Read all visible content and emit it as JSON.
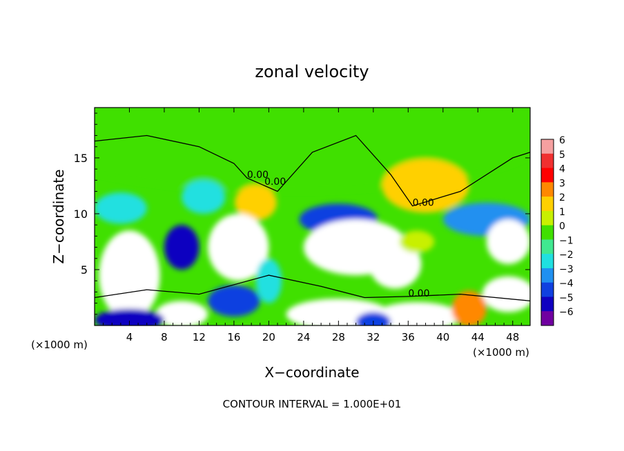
{
  "chart_data": {
    "type": "heatmap",
    "title": "zonal velocity",
    "xlabel": "X−coordinate",
    "ylabel": "Z−coordinate",
    "x_units_left": "(×1000 m)",
    "x_units_right": "(×1000 m)",
    "xlim": [
      0,
      50
    ],
    "ylim": [
      0,
      19.5
    ],
    "x_ticks": [
      4,
      8,
      12,
      16,
      20,
      24,
      28,
      32,
      36,
      40,
      44,
      48
    ],
    "y_ticks": [
      5,
      10,
      15
    ],
    "footer": "CONTOUR INTERVAL = 1.000E+01",
    "colorbar": {
      "levels": [
        6,
        5,
        4,
        3,
        2,
        1,
        0,
        -1,
        -2,
        -3,
        -4,
        -5,
        -6
      ],
      "tick_labels": [
        "6",
        "5",
        "4",
        "3",
        "2",
        "1",
        "0",
        "−1",
        "−2",
        "−3",
        "−4",
        "−5",
        "−6"
      ],
      "colors": [
        "#f5a0a0",
        "#f03030",
        "#ff0000",
        "#ff8800",
        "#ffd000",
        "#c8f000",
        "#40e000",
        "#40e890",
        "#20e0e0",
        "#2090f0",
        "#1040e0",
        "#1000c0",
        "#7000a0"
      ]
    },
    "contour_labels": [
      {
        "text": "0.00",
        "x": 17.5,
        "y": 13.2
      },
      {
        "text": "0.00",
        "x": 19.5,
        "y": 12.6
      },
      {
        "text": "0.00",
        "x": 36.5,
        "y": 10.7
      },
      {
        "text": "0.00",
        "x": 36,
        "y": 2.6
      }
    ],
    "field_blobs": [
      {
        "x": 22,
        "y": 17,
        "rx": 30,
        "ry": 5,
        "v": 0
      },
      {
        "x": 38,
        "y": 12.5,
        "rx": 5,
        "ry": 2.4,
        "v": 2
      },
      {
        "x": 18.5,
        "y": 11,
        "rx": 2.4,
        "ry": 1.6,
        "v": 2.3
      },
      {
        "x": 3,
        "y": 10.5,
        "rx": 3,
        "ry": 1.4,
        "v": -2.5
      },
      {
        "x": 28,
        "y": 9.5,
        "rx": 4.5,
        "ry": 1.4,
        "v": -4.5
      },
      {
        "x": 45,
        "y": 9.5,
        "rx": 5,
        "ry": 1.5,
        "v": -3.5
      },
      {
        "x": 12.5,
        "y": 11.5,
        "rx": 2.5,
        "ry": 1.5,
        "v": -2
      },
      {
        "x": 4,
        "y": 4.5,
        "rx": 3.5,
        "ry": 4,
        "v": 6
      },
      {
        "x": 10,
        "y": 7,
        "rx": 2,
        "ry": 2,
        "v": -5
      },
      {
        "x": 16.5,
        "y": 7,
        "rx": 3.5,
        "ry": 3,
        "v": 6
      },
      {
        "x": 30,
        "y": 7,
        "rx": 6,
        "ry": 2.5,
        "v": -6
      },
      {
        "x": 34.5,
        "y": 5.5,
        "rx": 3,
        "ry": 2.2,
        "v": -6
      },
      {
        "x": 37,
        "y": 7.5,
        "rx": 2,
        "ry": 1,
        "v": 1
      },
      {
        "x": 47.5,
        "y": 7.5,
        "rx": 2.5,
        "ry": 2,
        "v": -6
      },
      {
        "x": 16,
        "y": 2.2,
        "rx": 3,
        "ry": 1.4,
        "v": -4
      },
      {
        "x": 10,
        "y": 1,
        "rx": 3,
        "ry": 1.2,
        "v": 6
      },
      {
        "x": 4,
        "y": 0.5,
        "rx": 4,
        "ry": 1,
        "v": -5
      },
      {
        "x": 28,
        "y": 1,
        "rx": 6,
        "ry": 1.4,
        "v": 6
      },
      {
        "x": 37,
        "y": 0.8,
        "rx": 5,
        "ry": 1.3,
        "v": 6
      },
      {
        "x": 32,
        "y": 0.3,
        "rx": 2,
        "ry": 0.9,
        "v": -4
      },
      {
        "x": 47.5,
        "y": 2.8,
        "rx": 3,
        "ry": 1.6,
        "v": 6
      },
      {
        "x": 43,
        "y": 1.5,
        "rx": 2,
        "ry": 1.6,
        "v": 3
      },
      {
        "x": 20,
        "y": 4,
        "rx": 1.5,
        "ry": 2,
        "v": -2
      }
    ]
  }
}
